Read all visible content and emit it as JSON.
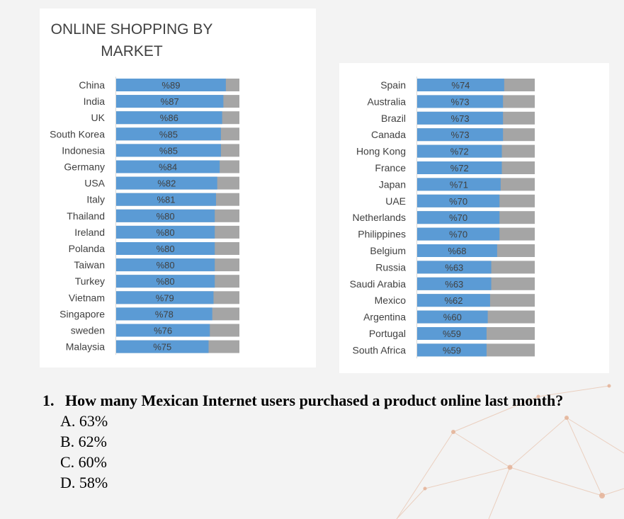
{
  "chart_data": [
    {
      "type": "bar",
      "orientation": "horizontal",
      "stacked_to_100": true,
      "title": "ONLINE SHOPPING BY MARKET",
      "categories": [
        "China",
        "India",
        "UK",
        "South Korea",
        "Indonesia",
        "Germany",
        "USA",
        "Italy",
        "Thailand",
        "Ireland",
        "Polanda",
        "Taiwan",
        "Turkey",
        "Vietnam",
        "Singapore",
        "sweden",
        "Malaysia"
      ],
      "values": [
        89,
        87,
        86,
        85,
        85,
        84,
        82,
        81,
        80,
        80,
        80,
        80,
        80,
        79,
        78,
        76,
        75
      ],
      "value_labels": [
        "%89",
        "%87",
        "%86",
        "%85",
        "%85",
        "%84",
        "%82",
        "%81",
        "%80",
        "%80",
        "%80",
        "%80",
        "%80",
        "%79",
        "%78",
        "%76",
        "%75"
      ],
      "xlim": [
        0,
        100
      ],
      "grid": false,
      "legend": "none",
      "colors": {
        "value": "#5b9bd5",
        "remainder": "#a5a5a5"
      }
    },
    {
      "type": "bar",
      "orientation": "horizontal",
      "stacked_to_100": true,
      "title": "",
      "categories": [
        "Spain",
        "Australia",
        "Brazil",
        "Canada",
        "Hong Kong",
        "France",
        "Japan",
        "UAE",
        "Netherlands",
        "Philippines",
        "Belgium",
        "Russia",
        "Saudi Arabia",
        "Mexico",
        "Argentina",
        "Portugal",
        "South Africa"
      ],
      "values": [
        74,
        73,
        73,
        73,
        72,
        72,
        71,
        70,
        70,
        70,
        68,
        63,
        63,
        62,
        60,
        59,
        59
      ],
      "value_labels": [
        "%74",
        "%73",
        "%73",
        "%73",
        "%72",
        "%72",
        "%71",
        "%70",
        "%70",
        "%70",
        "%68",
        "%63",
        "%63",
        "%62",
        "%60",
        "%59",
        "%59"
      ],
      "xlim": [
        0,
        100
      ],
      "grid": false,
      "legend": "none",
      "colors": {
        "value": "#5b9bd5",
        "remainder": "#a5a5a5"
      }
    }
  ],
  "question": {
    "number": "1.",
    "text": "How many Mexican Internet users purchased a product online last month?",
    "options": [
      "A. 63%",
      "B. 62%",
      "C. 60%",
      "D. 58%"
    ]
  }
}
